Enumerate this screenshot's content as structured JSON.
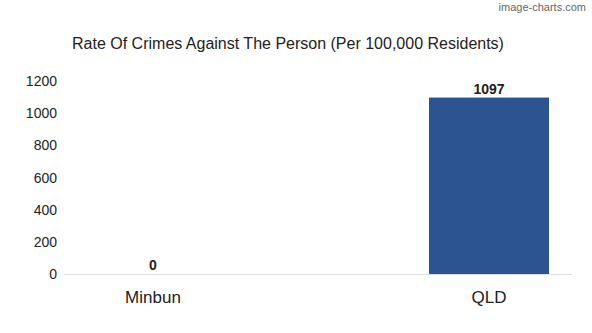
{
  "chart_data": {
    "type": "bar",
    "title": "Rate Of Crimes Against The Person (Per 100,000 Residents)",
    "annotation": "image-charts.com",
    "categories": [
      "Minbun",
      "QLD"
    ],
    "values": [
      0,
      1097
    ],
    "color": "#2b5490",
    "ylim": [
      0,
      1200
    ],
    "yticks": [
      0,
      200,
      400,
      600,
      800,
      1000,
      1200
    ],
    "grid": false,
    "data_labels": true
  }
}
